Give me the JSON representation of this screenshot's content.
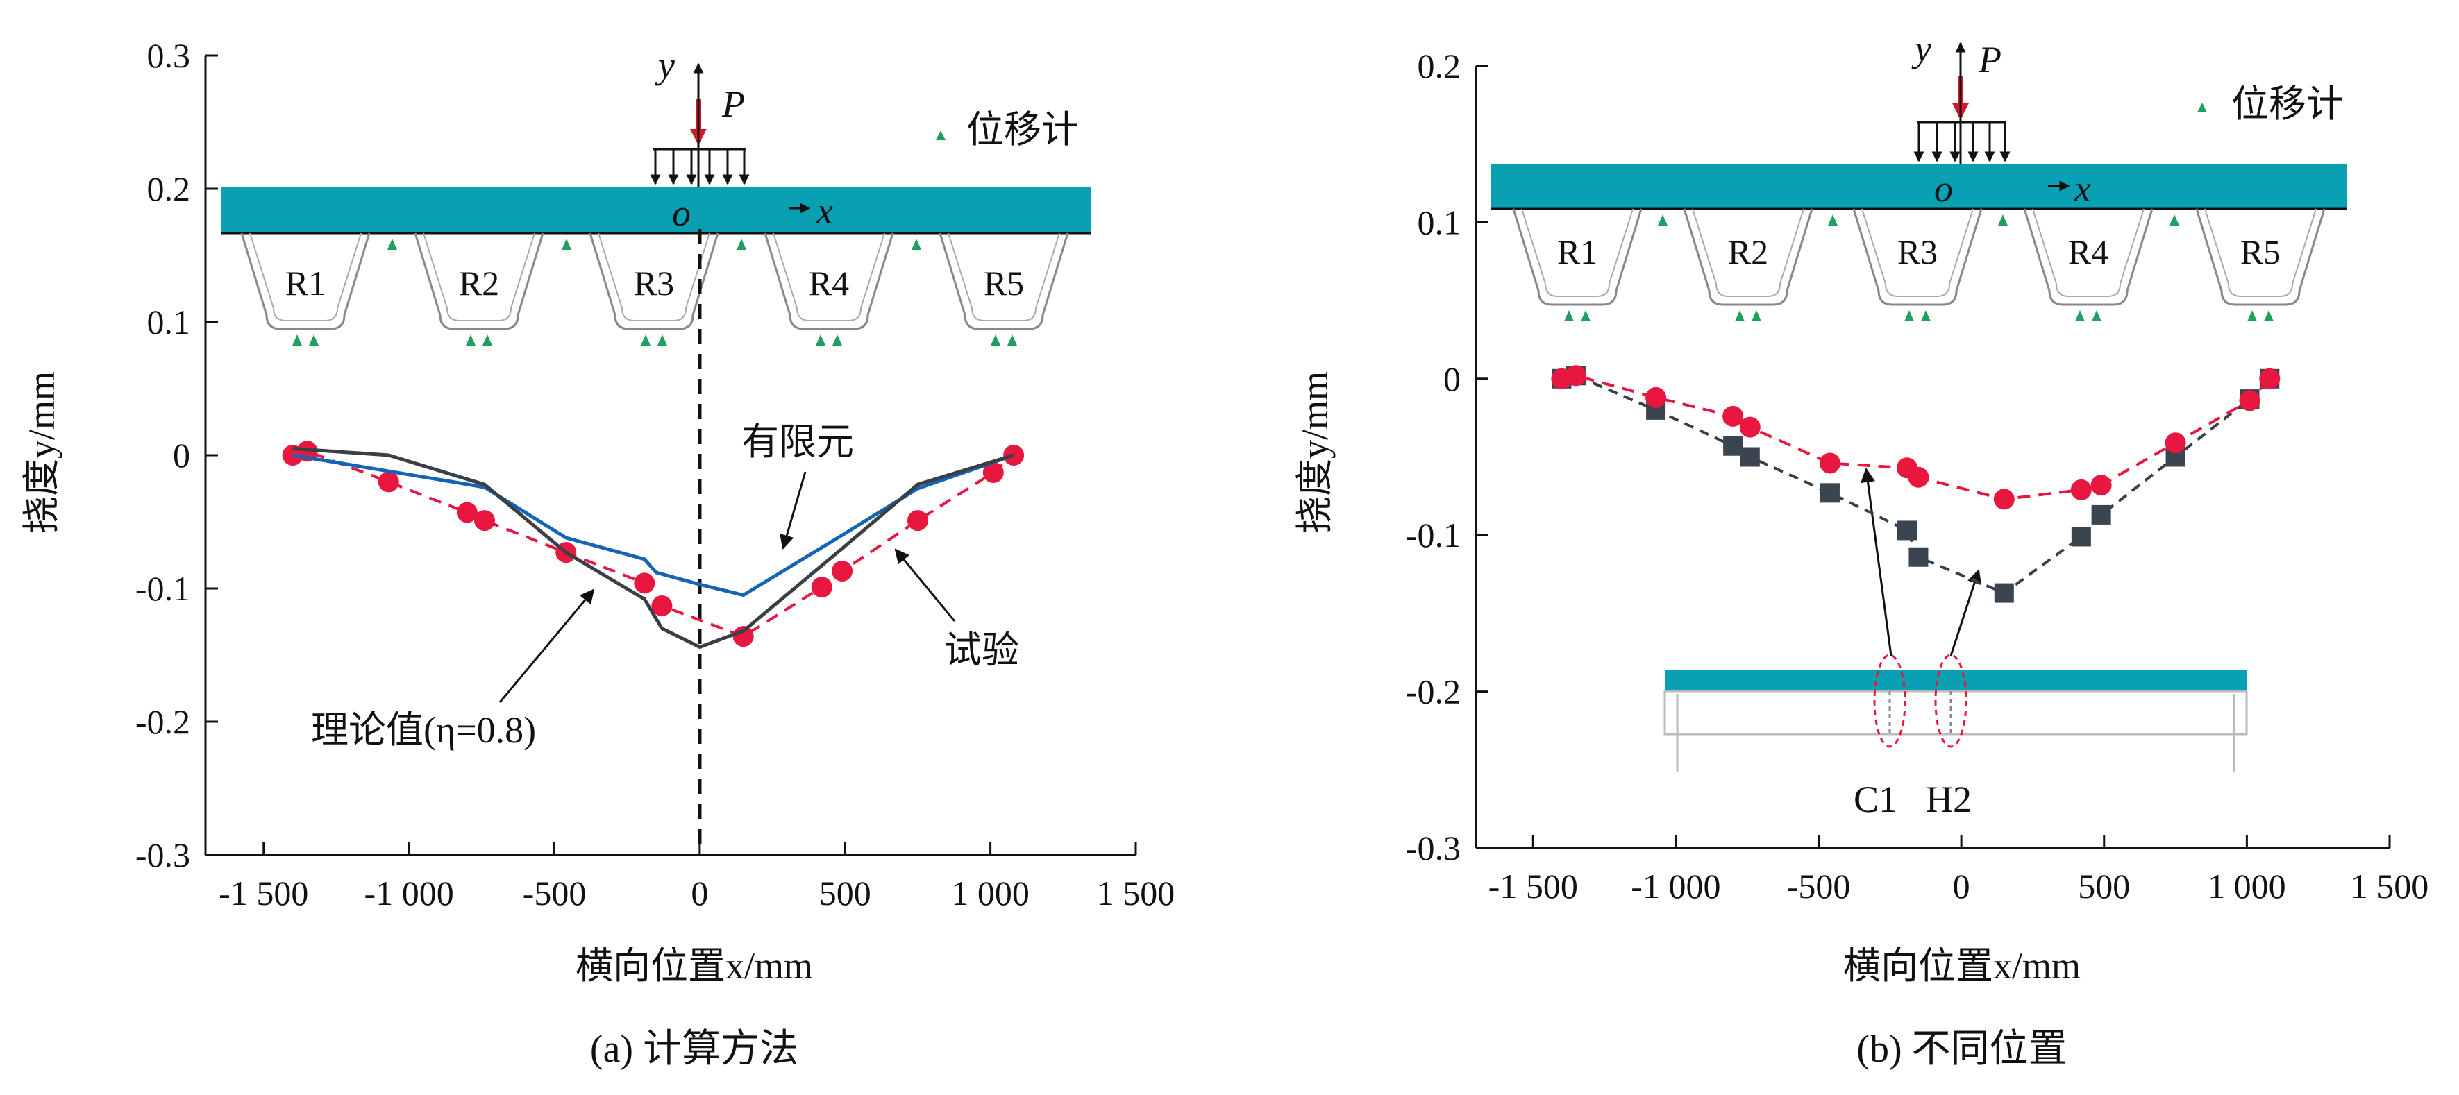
{
  "colors": {
    "deck": "#0aa0b4",
    "test": "#e8173f",
    "fem": "#1565b5",
    "theory": "#3a3f45",
    "marker": "#20a060",
    "load_arrow": "#d01c2a"
  },
  "chart_data": [
    {
      "type": "line",
      "caption": "(a) 计算方法",
      "xlabel": "横向位置x/mm",
      "ylabel": "挠度y/mm",
      "xlim": [
        -1700,
        1500
      ],
      "ylim": [
        -0.3,
        0.3
      ],
      "x_ticks": [
        "-1 500",
        "-1 000",
        "-500",
        "0",
        "500",
        "1 000",
        "1 500"
      ],
      "x_tick_values": [
        -1500,
        -1000,
        -500,
        0,
        500,
        1000,
        1500
      ],
      "y_ticks": [
        "0.3",
        "0.2",
        "0.1",
        "0",
        "-0.1",
        "-0.2",
        "-0.3"
      ],
      "y_tick_values": [
        0.3,
        0.2,
        0.1,
        0,
        -0.1,
        -0.2,
        -0.3
      ],
      "series": [
        {
          "name": "试验",
          "style": "dashed-circles",
          "x": [
            -1400,
            -1350,
            -1070,
            -800,
            -740,
            -460,
            -190,
            -130,
            150,
            420,
            490,
            750,
            1010,
            1080
          ],
          "y": [
            0.0,
            0.003,
            -0.02,
            -0.043,
            -0.049,
            -0.073,
            -0.096,
            -0.113,
            -0.136,
            -0.099,
            -0.087,
            -0.049,
            -0.013,
            0.0
          ]
        },
        {
          "name": "有限元",
          "style": "solid",
          "x": [
            -1400,
            -740,
            -460,
            -190,
            -150,
            0,
            150,
            490,
            750,
            1080
          ],
          "y": [
            0.0,
            -0.024,
            -0.062,
            -0.078,
            -0.088,
            -0.097,
            -0.105,
            -0.06,
            -0.025,
            0.0
          ]
        },
        {
          "name": "理论值(η=0.8)",
          "style": "solid",
          "x": [
            -1400,
            -1070,
            -740,
            -460,
            -190,
            -130,
            0,
            150,
            490,
            750,
            1080
          ],
          "y": [
            0.005,
            0.0,
            -0.022,
            -0.073,
            -0.108,
            -0.13,
            -0.144,
            -0.132,
            -0.07,
            -0.022,
            0.0
          ]
        }
      ],
      "annotations": {
        "fem_label": "有限元",
        "test_label": "试验",
        "theory_label": "理论值(η=0.8)"
      },
      "legend": {
        "label": "位移计"
      },
      "schematic": {
        "ribs": [
          "R1",
          "R2",
          "R3",
          "R4",
          "R5"
        ],
        "load": "P",
        "origin": "o",
        "axis_x": "x",
        "axis_y": "y"
      }
    },
    {
      "type": "line",
      "caption": "(b) 不同位置",
      "xlabel": "横向位置x/mm",
      "ylabel": "挠度y/mm",
      "xlim": [
        -1700,
        1500
      ],
      "ylim": [
        -0.3,
        0.2
      ],
      "x_ticks": [
        "-1 500",
        "-1 000",
        "-500",
        "0",
        "500",
        "1 000",
        "1 500"
      ],
      "x_tick_values": [
        -1500,
        -1000,
        -500,
        0,
        500,
        1000,
        1500
      ],
      "y_ticks": [
        "0.2",
        "0.1",
        "0",
        "-0.1",
        "-0.2",
        "-0.3"
      ],
      "y_tick_values": [
        0.2,
        0.1,
        0,
        -0.1,
        -0.2,
        -0.3
      ],
      "series": [
        {
          "name": "C1",
          "style": "dashed-circles",
          "x": [
            -1400,
            -1350,
            -1070,
            -800,
            -740,
            -460,
            -190,
            -150,
            150,
            420,
            490,
            750,
            1010,
            1080
          ],
          "y": [
            0.0,
            0.002,
            -0.012,
            -0.024,
            -0.031,
            -0.054,
            -0.057,
            -0.063,
            -0.077,
            -0.071,
            -0.068,
            -0.041,
            -0.014,
            0.0
          ]
        },
        {
          "name": "H2",
          "style": "dashed-squares",
          "x": [
            -1400,
            -1350,
            -1070,
            -800,
            -740,
            -460,
            -190,
            -150,
            150,
            420,
            490,
            750,
            1010,
            1080
          ],
          "y": [
            0.0,
            0.002,
            -0.02,
            -0.043,
            -0.05,
            -0.073,
            -0.097,
            -0.114,
            -0.137,
            -0.101,
            -0.087,
            -0.05,
            -0.013,
            0.0
          ]
        }
      ],
      "legend": {
        "label": "位移计"
      },
      "schematic": {
        "ribs": [
          "R1",
          "R2",
          "R3",
          "R4",
          "R5"
        ],
        "load": "P",
        "origin": "o",
        "axis_x": "x",
        "axis_y": "y",
        "section_labels": [
          "C1",
          "H2"
        ]
      }
    }
  ]
}
